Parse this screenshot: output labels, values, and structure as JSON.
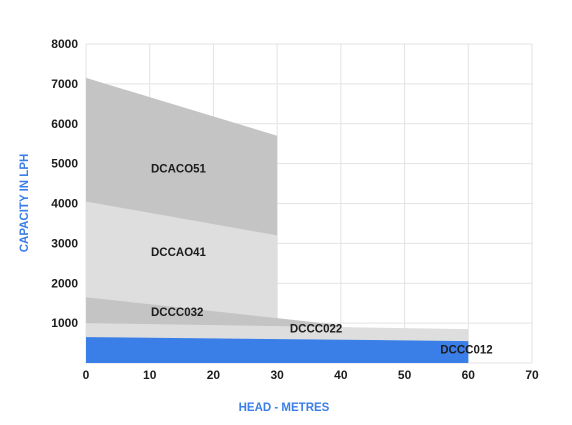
{
  "chart_data": {
    "type": "area",
    "xlabel": "HEAD - METRES",
    "ylabel": "CAPACITY IN LPH",
    "xlim": [
      0,
      70
    ],
    "ylim": [
      0,
      8000
    ],
    "x_ticks": [
      "0",
      "10",
      "20",
      "30",
      "40",
      "50",
      "60",
      "70"
    ],
    "y_ticks": [
      "1000",
      "2000",
      "3000",
      "4000",
      "5000",
      "6000",
      "7000",
      "8000"
    ],
    "grid": true,
    "series": [
      {
        "name": "DCACO51",
        "color": "#c4c4c4",
        "label_color": "#1c1c1c",
        "points": [
          [
            0,
            7150
          ],
          [
            30,
            5700
          ]
        ],
        "label_at": [
          10.2,
          4780
        ]
      },
      {
        "name": "DCCAO41",
        "color": "#dedede",
        "label_color": "#1c1c1c",
        "points": [
          [
            0,
            4050
          ],
          [
            30,
            3200
          ]
        ],
        "label_at": [
          10.2,
          2680
        ]
      },
      {
        "name": "DCCC032",
        "color": "#c4c4c4",
        "label_color": "#1c1c1c",
        "points": [
          [
            0,
            1650
          ],
          [
            40,
            950
          ]
        ],
        "label_at": [
          10.2,
          1180
        ]
      },
      {
        "name": "DCCC022",
        "color": "#dedede",
        "label_color": "#1c1c1c",
        "points": [
          [
            0,
            1000
          ],
          [
            60,
            850
          ]
        ],
        "label_at": [
          32.0,
          760
        ]
      },
      {
        "name": "DCCC012",
        "color": "#3a7ee8",
        "label_color": "#ffffff",
        "points": [
          [
            0,
            650
          ],
          [
            60,
            550
          ]
        ],
        "label_at": [
          55.6,
          240
        ]
      }
    ]
  }
}
